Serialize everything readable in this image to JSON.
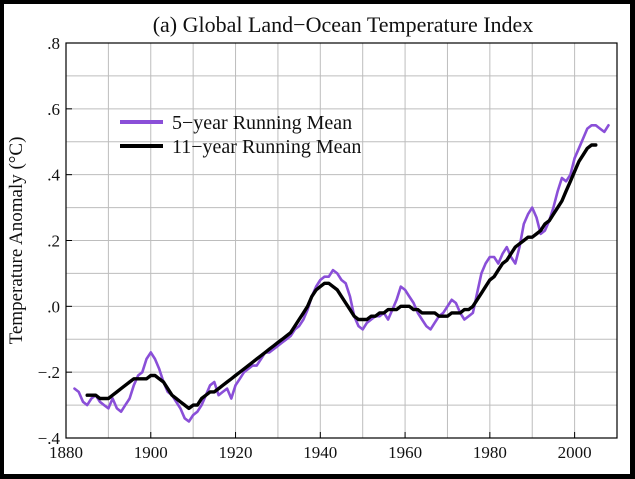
{
  "chart_data": {
    "type": "line",
    "title": "(a)  Global Land−Ocean Temperature Index",
    "xlabel": "",
    "ylabel": "Temperature Anomaly (°C)",
    "xlim": [
      1880,
      2010
    ],
    "ylim": [
      -0.4,
      0.8
    ],
    "x_ticks": [
      1880,
      1900,
      1920,
      1940,
      1960,
      1980,
      2000
    ],
    "x_tick_labels": [
      "1880",
      "1900",
      "1920",
      "1940",
      "1960",
      "1980",
      "2000"
    ],
    "x_minor_step": 10,
    "y_ticks": [
      -0.4,
      -0.2,
      0.0,
      0.2,
      0.4,
      0.6,
      0.8
    ],
    "y_tick_labels": [
      "−.4",
      "−.2",
      ".0",
      ".2",
      ".4",
      ".6",
      ".8"
    ],
    "y_minor_step": 0.1,
    "grid": true,
    "legend_position": "top-left",
    "series": [
      {
        "name": "5−year Running Mean",
        "color": "#8a4fd8",
        "x": [
          1882,
          1883,
          1884,
          1885,
          1886,
          1887,
          1888,
          1889,
          1890,
          1891,
          1892,
          1893,
          1894,
          1895,
          1896,
          1897,
          1898,
          1899,
          1900,
          1901,
          1902,
          1903,
          1904,
          1905,
          1906,
          1907,
          1908,
          1909,
          1910,
          1911,
          1912,
          1913,
          1914,
          1915,
          1916,
          1917,
          1918,
          1919,
          1920,
          1921,
          1922,
          1923,
          1924,
          1925,
          1926,
          1927,
          1928,
          1929,
          1930,
          1931,
          1932,
          1933,
          1934,
          1935,
          1936,
          1937,
          1938,
          1939,
          1940,
          1941,
          1942,
          1943,
          1944,
          1945,
          1946,
          1947,
          1948,
          1949,
          1950,
          1951,
          1952,
          1953,
          1954,
          1955,
          1956,
          1957,
          1958,
          1959,
          1960,
          1961,
          1962,
          1963,
          1964,
          1965,
          1966,
          1967,
          1968,
          1969,
          1970,
          1971,
          1972,
          1973,
          1974,
          1975,
          1976,
          1977,
          1978,
          1979,
          1980,
          1981,
          1982,
          1983,
          1984,
          1985,
          1986,
          1987,
          1988,
          1989,
          1990,
          1991,
          1992,
          1993,
          1994,
          1995,
          1996,
          1997,
          1998,
          1999,
          2000,
          2001,
          2002,
          2003,
          2004,
          2005,
          2006,
          2007,
          2008
        ],
        "y": [
          -0.25,
          -0.26,
          -0.29,
          -0.3,
          -0.28,
          -0.27,
          -0.29,
          -0.3,
          -0.31,
          -0.28,
          -0.31,
          -0.32,
          -0.3,
          -0.28,
          -0.24,
          -0.21,
          -0.2,
          -0.16,
          -0.14,
          -0.16,
          -0.19,
          -0.23,
          -0.26,
          -0.27,
          -0.29,
          -0.31,
          -0.34,
          -0.35,
          -0.33,
          -0.32,
          -0.3,
          -0.27,
          -0.24,
          -0.23,
          -0.27,
          -0.26,
          -0.25,
          -0.28,
          -0.24,
          -0.22,
          -0.2,
          -0.19,
          -0.18,
          -0.18,
          -0.16,
          -0.14,
          -0.14,
          -0.13,
          -0.12,
          -0.11,
          -0.1,
          -0.09,
          -0.07,
          -0.06,
          -0.04,
          -0.01,
          0.03,
          0.06,
          0.08,
          0.09,
          0.09,
          0.11,
          0.1,
          0.08,
          0.07,
          0.03,
          -0.03,
          -0.06,
          -0.07,
          -0.05,
          -0.04,
          -0.03,
          -0.03,
          -0.02,
          -0.04,
          -0.01,
          0.02,
          0.06,
          0.05,
          0.03,
          0.01,
          -0.02,
          -0.04,
          -0.06,
          -0.07,
          -0.05,
          -0.03,
          -0.02,
          0.0,
          0.02,
          0.01,
          -0.02,
          -0.04,
          -0.03,
          -0.02,
          0.04,
          0.1,
          0.13,
          0.15,
          0.15,
          0.13,
          0.16,
          0.18,
          0.15,
          0.13,
          0.18,
          0.25,
          0.28,
          0.3,
          0.27,
          0.22,
          0.23,
          0.26,
          0.3,
          0.35,
          0.39,
          0.38,
          0.4,
          0.45,
          0.48,
          0.51,
          0.54,
          0.55,
          0.55,
          0.54,
          0.53,
          0.55
        ]
      },
      {
        "name": "11−year Running Mean",
        "color": "#000000",
        "x": [
          1885,
          1886,
          1887,
          1888,
          1889,
          1890,
          1891,
          1892,
          1893,
          1894,
          1895,
          1896,
          1897,
          1898,
          1899,
          1900,
          1901,
          1902,
          1903,
          1904,
          1905,
          1906,
          1907,
          1908,
          1909,
          1910,
          1911,
          1912,
          1913,
          1914,
          1915,
          1916,
          1917,
          1918,
          1919,
          1920,
          1921,
          1922,
          1923,
          1924,
          1925,
          1926,
          1927,
          1928,
          1929,
          1930,
          1931,
          1932,
          1933,
          1934,
          1935,
          1936,
          1937,
          1938,
          1939,
          1940,
          1941,
          1942,
          1943,
          1944,
          1945,
          1946,
          1947,
          1948,
          1949,
          1950,
          1951,
          1952,
          1953,
          1954,
          1955,
          1956,
          1957,
          1958,
          1959,
          1960,
          1961,
          1962,
          1963,
          1964,
          1965,
          1966,
          1967,
          1968,
          1969,
          1970,
          1971,
          1972,
          1973,
          1974,
          1975,
          1976,
          1977,
          1978,
          1979,
          1980,
          1981,
          1982,
          1983,
          1984,
          1985,
          1986,
          1987,
          1988,
          1989,
          1990,
          1991,
          1992,
          1993,
          1994,
          1995,
          1996,
          1997,
          1998,
          1999,
          2000,
          2001,
          2002,
          2003,
          2004,
          2005
        ],
        "y": [
          -0.27,
          -0.27,
          -0.27,
          -0.28,
          -0.28,
          -0.28,
          -0.27,
          -0.26,
          -0.25,
          -0.24,
          -0.23,
          -0.22,
          -0.22,
          -0.22,
          -0.22,
          -0.21,
          -0.21,
          -0.22,
          -0.23,
          -0.25,
          -0.27,
          -0.28,
          -0.29,
          -0.3,
          -0.31,
          -0.3,
          -0.3,
          -0.28,
          -0.27,
          -0.26,
          -0.26,
          -0.25,
          -0.24,
          -0.23,
          -0.22,
          -0.21,
          -0.2,
          -0.19,
          -0.18,
          -0.17,
          -0.16,
          -0.15,
          -0.14,
          -0.13,
          -0.12,
          -0.11,
          -0.1,
          -0.09,
          -0.08,
          -0.06,
          -0.04,
          -0.02,
          0.0,
          0.03,
          0.05,
          0.06,
          0.07,
          0.07,
          0.06,
          0.05,
          0.03,
          0.01,
          -0.01,
          -0.03,
          -0.04,
          -0.04,
          -0.04,
          -0.03,
          -0.03,
          -0.02,
          -0.02,
          -0.01,
          -0.01,
          -0.01,
          0.0,
          0.0,
          0.0,
          -0.01,
          -0.01,
          -0.02,
          -0.02,
          -0.02,
          -0.02,
          -0.03,
          -0.03,
          -0.03,
          -0.02,
          -0.02,
          -0.02,
          -0.01,
          -0.01,
          0.0,
          0.02,
          0.04,
          0.06,
          0.08,
          0.09,
          0.11,
          0.13,
          0.14,
          0.16,
          0.18,
          0.19,
          0.2,
          0.21,
          0.21,
          0.22,
          0.23,
          0.25,
          0.26,
          0.28,
          0.3,
          0.32,
          0.35,
          0.38,
          0.41,
          0.44,
          0.46,
          0.48,
          0.49,
          0.49
        ]
      }
    ]
  }
}
